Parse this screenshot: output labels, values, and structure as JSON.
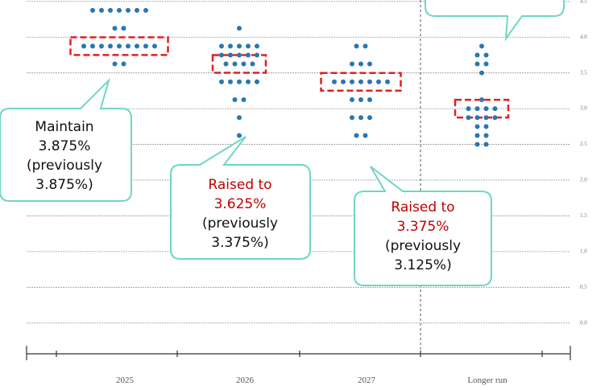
{
  "chart_data": {
    "type": "dot",
    "categories": [
      "2025",
      "2026",
      "2027",
      "Longer run"
    ],
    "columns": [
      {
        "dots": [
          {
            "y": 4.375,
            "count": 7
          },
          {
            "y": 4.125,
            "count": 2
          },
          {
            "y": 3.875,
            "count": 9
          },
          {
            "y": 3.625,
            "count": 2
          }
        ]
      },
      {
        "dots": [
          {
            "y": 4.125,
            "count": 1
          },
          {
            "y": 3.875,
            "count": 5
          },
          {
            "y": 3.75,
            "count": 5
          },
          {
            "y": 3.625,
            "count": 4
          },
          {
            "y": 3.375,
            "count": 5
          },
          {
            "y": 3.125,
            "count": 2
          },
          {
            "y": 2.875,
            "count": 1
          },
          {
            "y": 2.625,
            "count": 1
          }
        ]
      },
      {
        "dots": [
          {
            "y": 3.875,
            "count": 2
          },
          {
            "y": 3.625,
            "count": 3
          },
          {
            "y": 3.375,
            "count": 7
          },
          {
            "y": 3.125,
            "count": 3
          },
          {
            "y": 2.875,
            "count": 3
          },
          {
            "y": 2.625,
            "count": 2
          }
        ]
      },
      {
        "dots": [
          {
            "y": 3.875,
            "count": 1
          },
          {
            "y": 3.75,
            "count": 2
          },
          {
            "y": 3.625,
            "count": 2
          },
          {
            "y": 3.5,
            "count": 1
          },
          {
            "y": 3.125,
            "count": 1
          },
          {
            "y": 3.0,
            "count": 4
          },
          {
            "y": 2.875,
            "count": 4
          },
          {
            "y": 2.75,
            "count": 2
          },
          {
            "y": 2.625,
            "count": 2
          },
          {
            "y": 2.5,
            "count": 2
          }
        ]
      }
    ],
    "medians": [
      3.875,
      3.625,
      3.375,
      3.0
    ],
    "color": "#2a77b0",
    "median_color": "#e02020",
    "ylim": [
      -0.43,
      4.52
    ],
    "yticks": [
      {
        "value": 0,
        "label": "0.0"
      },
      0.5,
      {
        "value": 1,
        "label": "1.0"
      },
      1.5,
      {
        "value": 2,
        "label": "2.0"
      },
      2.5,
      {
        "value": 3,
        "label": "3.0"
      },
      3.5,
      {
        "value": 4,
        "label": "4.0"
      },
      4.5
    ],
    "grid": true,
    "annotations": [
      {
        "lines": [
          {
            "text": "Maintain",
            "color": "#111111"
          },
          {
            "text": "3.875%",
            "color": "#111111"
          },
          {
            "text": "(previously",
            "color": "#111111"
          },
          {
            "text": "3.875%)",
            "color": "#111111"
          }
        ]
      },
      {
        "lines": [
          {
            "text": "Raised to",
            "color": "#c00000"
          },
          {
            "text": "3.625%",
            "color": "#c00000"
          },
          {
            "text": "(previously",
            "color": "#111111"
          },
          {
            "text": "3.375%)",
            "color": "#111111"
          }
        ]
      },
      {
        "lines": [
          {
            "text": "Raised to",
            "color": "#c00000"
          },
          {
            "text": "3.375%",
            "color": "#c00000"
          },
          {
            "text": "(previously",
            "color": "#111111"
          },
          {
            "text": "3.125%)",
            "color": "#111111"
          }
        ]
      }
    ]
  }
}
